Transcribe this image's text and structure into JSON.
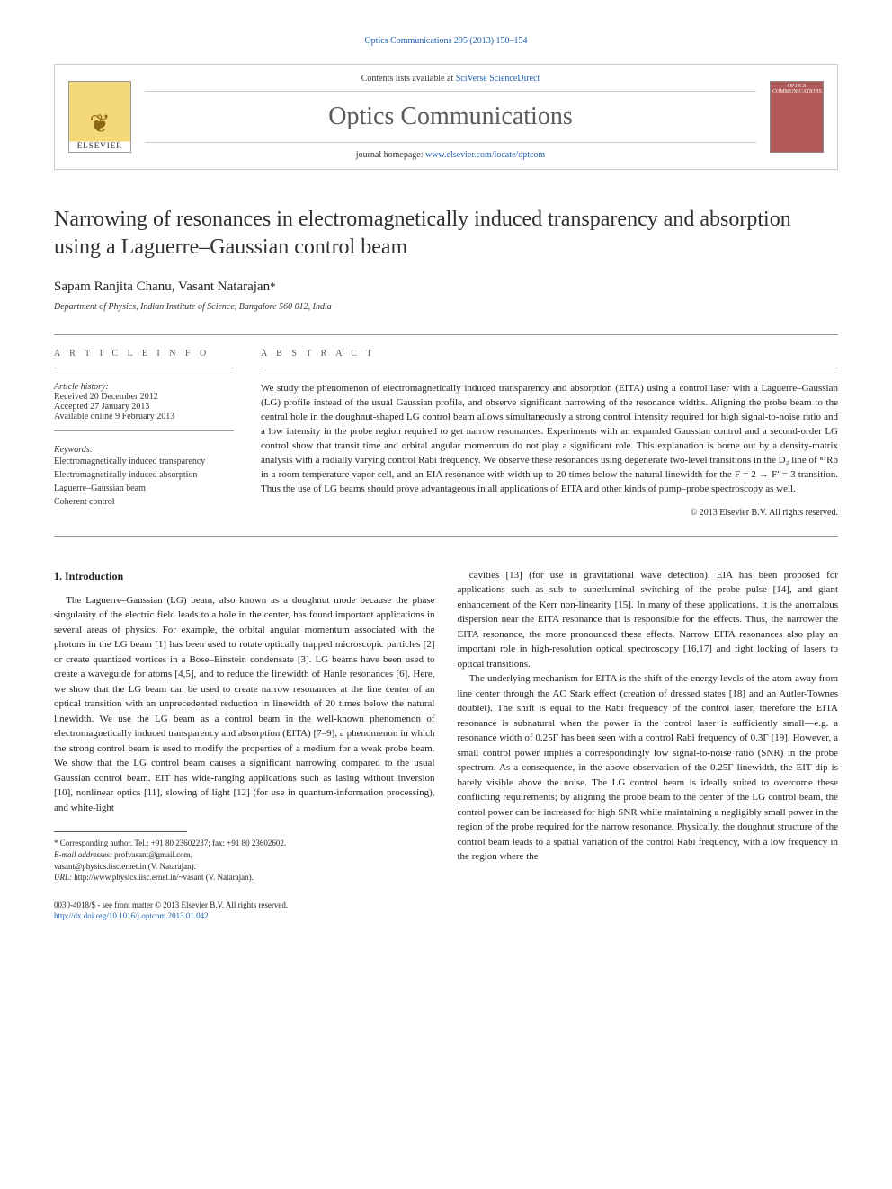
{
  "citation": {
    "text": "Optics Communications 295 (2013) 150–154",
    "link_color": "#2060b0"
  },
  "header": {
    "contents_prefix": "Contents lists available at ",
    "contents_link": "SciVerse ScienceDirect",
    "journal_name": "Optics Communications",
    "homepage_prefix": "journal homepage: ",
    "homepage_link": "www.elsevier.com/locate/optcom",
    "elsevier_label": "ELSEVIER",
    "cover_label": "OPTICS COMMUNICATIONS"
  },
  "title": "Narrowing of resonances in electromagnetically induced transparency and absorption using a Laguerre–Gaussian control beam",
  "authors": {
    "line": "Sapam Ranjita Chanu, Vasant Natarajan",
    "corr_mark": "*"
  },
  "affiliation": "Department of Physics, Indian Institute of Science, Bangalore 560 012, India",
  "article_info": {
    "heading": "A R T I C L E  I N F O",
    "history_label": "Article history:",
    "received": "Received 20 December 2012",
    "accepted": "Accepted 27 January 2013",
    "available": "Available online 9 February 2013",
    "keywords_label": "Keywords:",
    "keywords": [
      "Electromagnetically induced transparency",
      "Electromagnetically induced absorption",
      "Laguerre–Gaussian beam",
      "Coherent control"
    ]
  },
  "abstract": {
    "heading": "A B S T R A C T",
    "text": "We study the phenomenon of electromagnetically induced transparency and absorption (EITA) using a control laser with a Laguerre–Gaussian (LG) profile instead of the usual Gaussian profile, and observe significant narrowing of the resonance widths. Aligning the probe beam to the central hole in the doughnut-shaped LG control beam allows simultaneously a strong control intensity required for high signal-to-noise ratio and a low intensity in the probe region required to get narrow resonances. Experiments with an expanded Gaussian control and a second-order LG control show that transit time and orbital angular momentum do not play a significant role. This explanation is borne out by a density-matrix analysis with a radially varying control Rabi frequency. We observe these resonances using degenerate two-level transitions in the D₂ line of ⁸⁷Rb in a room temperature vapor cell, and an EIA resonance with width up to 20 times below the natural linewidth for the F = 2 → F′ = 3 transition. Thus the use of LG beams should prove advantageous in all applications of EITA and other kinds of pump–probe spectroscopy as well.",
    "copyright": "© 2013 Elsevier B.V. All rights reserved."
  },
  "body": {
    "section1_heading": "1. Introduction",
    "col1_p1": "The Laguerre–Gaussian (LG) beam, also known as a doughnut mode because the phase singularity of the electric field leads to a hole in the center, has found important applications in several areas of physics. For example, the orbital angular momentum associated with the photons in the LG beam [1] has been used to rotate optically trapped microscopic particles [2] or create quantized vortices in a Bose–Einstein condensate [3]. LG beams have been used to create a waveguide for atoms [4,5], and to reduce the linewidth of Hanle resonances [6]. Here, we show that the LG beam can be used to create narrow resonances at the line center of an optical transition with an unprecedented reduction in linewidth of 20 times below the natural linewidth. We use the LG beam as a control beam in the well-known phenomenon of electromagnetically induced transparency and absorption (EITA) [7–9], a phenomenon in which the strong control beam is used to modify the properties of a medium for a weak probe beam. We show that the LG control beam causes a significant narrowing compared to the usual Gaussian control beam. EIT has wide-ranging applications such as lasing without inversion [10], nonlinear optics [11], slowing of light [12] (for use in quantum-information processing), and white-light",
    "col2_p1": "cavities [13] (for use in gravitational wave detection). EIA has been proposed for applications such as sub to superluminal switching of the probe pulse [14], and giant enhancement of the Kerr non-linearity [15]. In many of these applications, it is the anomalous dispersion near the EITA resonance that is responsible for the effects. Thus, the narrower the EITA resonance, the more pronounced these effects. Narrow EITA resonances also play an important role in high-resolution optical spectroscopy [16,17] and tight locking of lasers to optical transitions.",
    "col2_p2": "The underlying mechanism for EITA is the shift of the energy levels of the atom away from line center through the AC Stark effect (creation of dressed states [18] and an Autler-Townes doublet). The shift is equal to the Rabi frequency of the control laser, therefore the EITA resonance is subnatural when the power in the control laser is sufficiently small—e.g. a resonance width of 0.25Γ has been seen with a control Rabi frequency of 0.3Γ [19]. However, a small control power implies a correspondingly low signal-to-noise ratio (SNR) in the probe spectrum. As a consequence, in the above observation of the 0.25Γ linewidth, the EIT dip is barely visible above the noise. The LG control beam is ideally suited to overcome these conflicting requirements; by aligning the probe beam to the center of the LG control beam, the control power can be increased for high SNR while maintaining a negligibly small power in the region of the probe required for the narrow resonance. Physically, the doughnut structure of the control beam leads to a spatial variation of the control Rabi frequency, with a low frequency in the region where the"
  },
  "footnotes": {
    "corr": "* Corresponding author. Tel.: +91 80 23602237; fax: +91 80 23602602.",
    "email_label": "E-mail addresses:",
    "email1": "profvasant@gmail.com,",
    "email2": "vasant@physics.iisc.ernet.in (V. Natarajan).",
    "url_label": "URL:",
    "url": "http://www.physics.iisc.ernet.in/~vasant (V. Natarajan)."
  },
  "footer": {
    "line1": "0030-4018/$ - see front matter © 2013 Elsevier B.V. All rights reserved.",
    "line2": "http://dx.doi.org/10.1016/j.optcom.2013.01.042"
  },
  "colors": {
    "link": "#2060b0",
    "text": "#222222",
    "heading_gray": "#555555"
  }
}
